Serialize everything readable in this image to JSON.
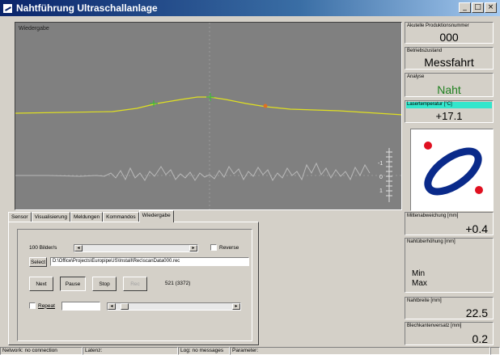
{
  "window": {
    "title": "Nahtführung Ultraschallanlage",
    "minimize": "_",
    "maximize": "□",
    "close": "×"
  },
  "scope": {
    "label": "Wiedergabe",
    "scale_labels": [
      "-1",
      "0",
      "1"
    ]
  },
  "tabs": [
    {
      "label": "Sensor"
    },
    {
      "label": "Visualisierung"
    },
    {
      "label": "Meldungen"
    },
    {
      "label": "Kommandos"
    },
    {
      "label": "Wiedergabe"
    }
  ],
  "playback": {
    "rate_label": "100 Bilder/s",
    "reverse_label": "Reverse",
    "reverse_checked": false,
    "select_label": "Select",
    "file_path": "D:\\Office\\Projects\\EuropipeUS\\Install\\Rec\\scanData000.rec",
    "next_label": "Next",
    "pause_label": "Pause",
    "stop_label": "Stop",
    "rec_label": "Rec",
    "frame_counter": "521 (3372)",
    "repeat_label": "Repeat",
    "repeat_checked": false,
    "repeat_value": "",
    "left_arrow": "◂",
    "right_arrow": "▸"
  },
  "panels": {
    "produktionsnummer": {
      "label": "Akutelle Produktionsnummer",
      "value": "000"
    },
    "betriebszustand": {
      "label": "Betriebszustand",
      "value": "Messfahrt"
    },
    "analyse": {
      "label": "Analyse",
      "value": "Naht",
      "color": "#208020"
    },
    "lasertemperatur": {
      "label": "Lasertemperatur [°C]",
      "value": "+17.1",
      "highlight": "#33e6cc"
    },
    "mittenabweichung": {
      "label": "Mittenabweichung [mm]",
      "value": "+0.4"
    },
    "nahtueberhoehung": {
      "label": "Nahtüberhöhung [mm]",
      "min_label": "Min",
      "max_label": "Max"
    },
    "nahtbreite": {
      "label": "Nahtbreite [mm]",
      "value": "22.5"
    },
    "blechkantenversatz": {
      "label": "Blechkantenversatz [mm]",
      "value": "0.2"
    }
  },
  "statusbar": {
    "network": "Network: no connection",
    "latenz": "Latenz:",
    "log": "Log: no messages",
    "parameter": "Parameter:"
  },
  "colors": {
    "scope_bg": "#808080",
    "profile_line": "#e0e020",
    "diagram_ellipse": "#0a2a8a",
    "diagram_dots": "#e01020"
  }
}
